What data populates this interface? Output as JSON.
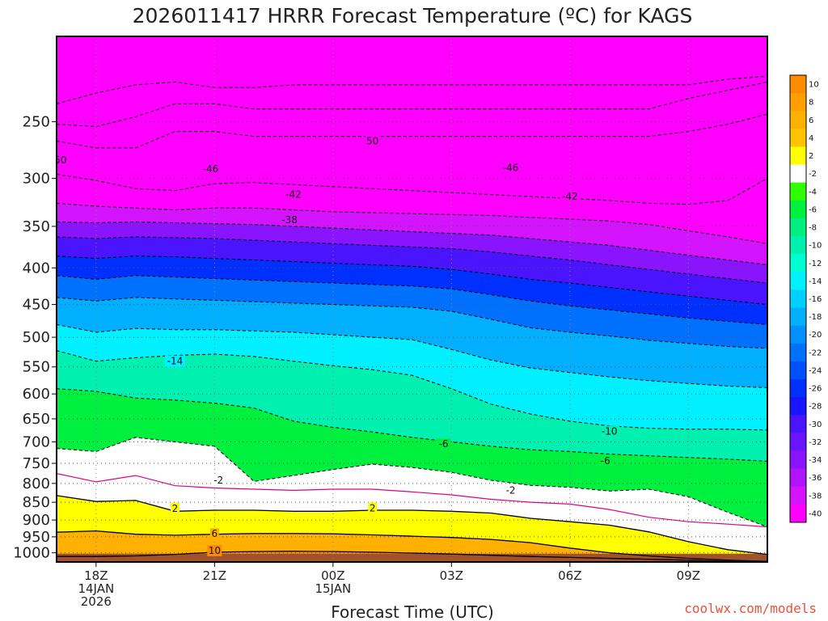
{
  "chart_data": {
    "type": "heatmap",
    "title": "2026011417 HRRR Forecast Temperature (ºC) for KAGS",
    "xlabel": "Forecast Time (UTC)",
    "credit": "coolwx.com/models",
    "x_range_hours_from_18z": [
      -1,
      17
    ],
    "y_range_hpa": [
      1030,
      190
    ],
    "x_ticks": [
      {
        "hour": 0,
        "lines": [
          "18Z",
          "14JAN",
          "2026"
        ]
      },
      {
        "hour": 3,
        "lines": [
          "21Z"
        ]
      },
      {
        "hour": 6,
        "lines": [
          "00Z",
          "15JAN"
        ]
      },
      {
        "hour": 9,
        "lines": [
          "03Z"
        ]
      },
      {
        "hour": 12,
        "lines": [
          "06Z"
        ]
      },
      {
        "hour": 15,
        "lines": [
          "09Z"
        ]
      }
    ],
    "y_ticks": [
      "250",
      "300",
      "350",
      "400",
      "450",
      "500",
      "550",
      "600",
      "650",
      "700",
      "750",
      "800",
      "850",
      "900",
      "950",
      "1000"
    ],
    "grid": true,
    "colorbar": {
      "placement": "right",
      "labels": [
        "10",
        "8",
        "6",
        "4",
        "2",
        "-2",
        "-4",
        "-6",
        "-8",
        "-10",
        "-12",
        "-14",
        "-16",
        "-18",
        "-20",
        "-22",
        "-24",
        "-26",
        "-28",
        "-30",
        "-32",
        "-34",
        "-36",
        "-38",
        "-40"
      ],
      "colors": [
        "#ff8c00",
        "#ff9f00",
        "#ffb000",
        "#ffc400",
        "#ffff00",
        "#ffffff",
        "#30ff00",
        "#00f040",
        "#00ef80",
        "#00f0b0",
        "#00ffd0",
        "#00f0ff",
        "#00d0ff",
        "#00b0ff",
        "#0090ff",
        "#0070ff",
        "#0050ff",
        "#0030ff",
        "#1a14ff",
        "#4b14ff",
        "#6a14ff",
        "#8a14ff",
        "#b014ff",
        "#d514ff",
        "#ff00ff"
      ]
    },
    "surface_color": "#a0522d",
    "isotherm_profile_hours": [
      -1,
      0,
      1,
      2,
      3,
      4,
      5,
      6,
      7,
      8,
      9,
      10,
      11,
      12,
      13,
      14,
      15,
      16,
      17
    ],
    "isotherm_pressures_hpa": [
      {
        "temp": 10,
        "p": [
          1012,
          1012,
          1010,
          1005,
          998,
          996,
          995,
          996,
          998,
          1001,
          1004,
          1008,
          1012,
          1015,
          1018,
          1021,
          1024,
          1028,
          1030
        ]
      },
      {
        "temp": 6,
        "p": [
          936,
          932,
          942,
          945,
          942,
          940,
          940,
          941,
          944,
          948,
          952,
          958,
          968,
          985,
          1000,
          1010,
          1018,
          1024,
          1028
        ]
      },
      {
        "temp": 2,
        "p": [
          832,
          848,
          845,
          875,
          872,
          872,
          875,
          875,
          872,
          872,
          875,
          880,
          895,
          905,
          915,
          935,
          965,
          990,
          1005
        ]
      },
      {
        "temp": -2,
        "p": [
          715,
          722,
          690,
          700,
          710,
          795,
          780,
          765,
          752,
          760,
          772,
          792,
          805,
          810,
          820,
          815,
          835,
          878,
          920
        ]
      },
      {
        "temp": -6,
        "p": [
          590,
          595,
          608,
          612,
          618,
          628,
          655,
          668,
          678,
          690,
          700,
          710,
          718,
          722,
          728,
          732,
          736,
          740,
          745
        ]
      },
      {
        "temp": -10,
        "p": [
          522,
          540,
          534,
          530,
          528,
          532,
          540,
          548,
          555,
          565,
          590,
          620,
          640,
          655,
          665,
          670,
          672,
          672,
          674
        ]
      },
      {
        "temp": -14,
        "p": [
          480,
          492,
          486,
          488,
          488,
          490,
          492,
          496,
          500,
          504,
          520,
          538,
          552,
          560,
          568,
          575,
          580,
          585,
          588
        ]
      },
      {
        "temp": -18,
        "p": [
          440,
          445,
          440,
          442,
          444,
          446,
          448,
          450,
          452,
          454,
          460,
          472,
          485,
          492,
          498,
          505,
          510,
          515,
          518
        ]
      },
      {
        "temp": -22,
        "p": [
          410,
          415,
          410,
          412,
          414,
          416,
          418,
          420,
          422,
          424,
          428,
          436,
          445,
          452,
          458,
          464,
          470,
          475,
          480
        ]
      },
      {
        "temp": -26,
        "p": [
          385,
          388,
          385,
          386,
          388,
          390,
          392,
          394,
          396,
          398,
          402,
          408,
          415,
          420,
          426,
          432,
          438,
          444,
          450
        ]
      },
      {
        "temp": -30,
        "p": [
          362,
          364,
          362,
          363,
          364,
          366,
          368,
          370,
          372,
          374,
          376,
          380,
          385,
          390,
          396,
          402,
          408,
          414,
          420
        ]
      },
      {
        "temp": -34,
        "p": [
          345,
          346,
          345,
          346,
          347,
          348,
          350,
          352,
          354,
          356,
          358,
          360,
          364,
          368,
          372,
          378,
          384,
          390,
          396
        ]
      },
      {
        "temp": -38,
        "p": [
          325,
          328,
          330,
          332,
          330,
          330,
          332,
          334,
          335,
          336,
          337,
          338,
          340,
          342,
          344,
          348,
          355,
          362,
          370
        ]
      },
      {
        "temp": -42,
        "p": [
          296,
          302,
          310,
          312,
          305,
          304,
          306,
          308,
          310,
          312,
          314,
          316,
          318,
          320,
          322,
          325,
          326,
          322,
          300
        ]
      },
      {
        "temp": -46,
        "p": [
          266,
          272,
          272,
          258,
          258,
          262,
          262,
          262,
          262,
          262,
          262,
          262,
          262,
          262,
          262,
          262,
          258,
          252,
          244
        ]
      },
      {
        "temp": -50,
        "p": [
          252,
          254,
          246,
          236,
          236,
          240,
          240,
          240,
          240,
          240,
          240,
          240,
          240,
          240,
          240,
          240,
          232,
          226,
          220
        ]
      },
      {
        "temp": -54,
        "p": [
          236,
          228,
          222,
          220,
          224,
          224,
          222,
          222,
          222,
          222,
          222,
          222,
          222,
          222,
          222,
          222,
          222,
          218,
          216
        ]
      }
    ],
    "freezing_line_hours": [
      -1,
      0,
      1,
      2,
      3,
      4,
      5,
      6,
      7,
      8,
      9,
      10,
      11,
      12,
      13,
      14,
      15,
      16,
      17
    ],
    "freezing_line_hpa": [
      775,
      796,
      780,
      806,
      812,
      815,
      818,
      815,
      815,
      822,
      830,
      842,
      850,
      855,
      870,
      892,
      905,
      912,
      920
    ],
    "contour_labels": [
      {
        "text": "50",
        "hour": -0.9,
        "hpa": 283
      },
      {
        "text": "50",
        "hour": 7.0,
        "hpa": 266
      },
      {
        "text": "-46",
        "hour": 2.9,
        "hpa": 291
      },
      {
        "text": "-46",
        "hour": 10.5,
        "hpa": 290
      },
      {
        "text": "-42",
        "hour": 5.0,
        "hpa": 316
      },
      {
        "text": "-42",
        "hour": 12.0,
        "hpa": 318
      },
      {
        "text": "-38",
        "hour": 4.9,
        "hpa": 343
      },
      {
        "text": "-14",
        "hour": 2.0,
        "hpa": 540
      },
      {
        "text": "-10",
        "hour": 13.0,
        "hpa": 677
      },
      {
        "text": "-6",
        "hour": 8.8,
        "hpa": 705
      },
      {
        "text": "-6",
        "hour": 12.9,
        "hpa": 744
      },
      {
        "text": "-2",
        "hour": 3.1,
        "hpa": 792
      },
      {
        "text": "-2",
        "hour": 10.5,
        "hpa": 818
      },
      {
        "text": "2",
        "hour": 2.0,
        "hpa": 867
      },
      {
        "text": "2",
        "hour": 7.0,
        "hpa": 866
      },
      {
        "text": "6",
        "hour": 3.0,
        "hpa": 941
      },
      {
        "text": "10",
        "hour": 3.0,
        "hpa": 993
      }
    ]
  }
}
